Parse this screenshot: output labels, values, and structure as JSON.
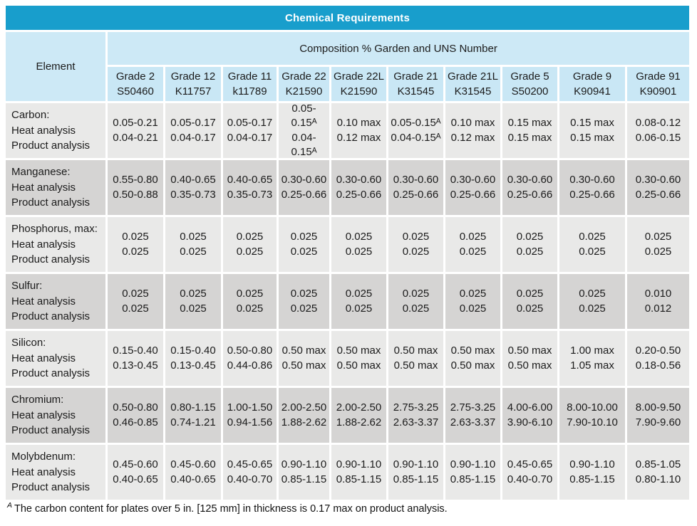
{
  "colors": {
    "title_bg": "#189ECC",
    "title_text": "#FFFFFF",
    "header_bg": "#CDE9F6",
    "row_light": "#E9E9E8",
    "row_dark": "#D5D4D3"
  },
  "table": {
    "title": "Chemical Requirements",
    "element_header": "Element",
    "composition_header": "Composition % Garden and UNS Number",
    "columns": [
      {
        "grade": "Grade 2",
        "uns": "S50460"
      },
      {
        "grade": "Grade 12",
        "uns": "K11757"
      },
      {
        "grade": "Grade 11",
        "uns": "k11789"
      },
      {
        "grade": "Grade 22",
        "uns": "K21590"
      },
      {
        "grade": "Grade 22L",
        "uns": "K21590"
      },
      {
        "grade": "Grade 21",
        "uns": "K31545"
      },
      {
        "grade": "Grade 21L",
        "uns": "K31545"
      },
      {
        "grade": "Grade 5",
        "uns": "S50200"
      },
      {
        "grade": "Grade 9",
        "uns": "K90941"
      },
      {
        "grade": "Grade 91",
        "uns": "K90901"
      }
    ],
    "rows": [
      {
        "element": "Carbon:\nHeat analysis\nProduct analysis",
        "values": [
          "0.05-0.21\n0.04-0.21",
          "0.05-0.17\n0.04-0.17",
          "0.05-0.17\n0.04-0.17",
          "0.05-\n0.15ᴬ\n0.04-\n0.15ᴬ",
          "0.10 max\n0.12 max",
          "0.05-0.15ᴬ\n0.04-0.15ᴬ",
          "0.10 max\n0.12 max",
          "0.15 max\n0.15 max",
          "0.15 max\n0.15 max",
          "0.08-0.12\n0.06-0.15"
        ]
      },
      {
        "element": "Manganese:\nHeat analysis\nProduct analysis",
        "values": [
          "0.55-0.80\n0.50-0.88",
          "0.40-0.65\n0.35-0.73",
          "0.40-0.65\n0.35-0.73",
          "0.30-0.60\n0.25-0.66",
          "0.30-0.60\n0.25-0.66",
          "0.30-0.60\n0.25-0.66",
          "0.30-0.60\n0.25-0.66",
          "0.30-0.60\n0.25-0.66",
          "0.30-0.60\n0.25-0.66",
          "0.30-0.60\n0.25-0.66"
        ]
      },
      {
        "element": "Phosphorus, max:\nHeat analysis\nProduct analysis",
        "values": [
          "0.025\n0.025",
          "0.025\n0.025",
          "0.025\n0.025",
          "0.025\n0.025",
          "0.025\n0.025",
          "0.025\n0.025",
          "0.025\n0.025",
          "0.025\n0.025",
          "0.025\n0.025",
          "0.025\n0.025"
        ]
      },
      {
        "element": "Sulfur:\nHeat analysis\nProduct analysis",
        "values": [
          "0.025\n0.025",
          "0.025\n0.025",
          "0.025\n0.025",
          "0.025\n0.025",
          "0.025\n0.025",
          "0.025\n0.025",
          "0.025\n0.025",
          "0.025\n0.025",
          "0.025\n0.025",
          "0.010\n0.012"
        ]
      },
      {
        "element": "Silicon:\nHeat analysis\nProduct analysis",
        "values": [
          "0.15-0.40\n0.13-0.45",
          "0.15-0.40\n0.13-0.45",
          "0.50-0.80\n0.44-0.86",
          "0.50 max\n0.50 max",
          "0.50 max\n0.50 max",
          "0.50 max\n0.50 max",
          "0.50 max\n0.50 max",
          "0.50 max\n0.50 max",
          "1.00 max\n1.05 max",
          "0.20-0.50\n0.18-0.56"
        ]
      },
      {
        "element": "Chromium:\nHeat analysis\nProduct analysis",
        "values": [
          "0.50-0.80\n0.46-0.85",
          "0.80-1.15\n0.74-1.21",
          "1.00-1.50\n0.94-1.56",
          "2.00-2.50\n1.88-2.62",
          "2.00-2.50\n1.88-2.62",
          "2.75-3.25\n2.63-3.37",
          "2.75-3.25\n2.63-3.37",
          "4.00-6.00\n3.90-6.10",
          "8.00-10.00\n7.90-10.10",
          "8.00-9.50\n7.90-9.60"
        ]
      },
      {
        "element": "Molybdenum:\nHeat analysis\nProduct analysis",
        "values": [
          "0.45-0.60\n0.40-0.65",
          "0.45-0.60\n0.40-0.65",
          "0.45-0.65\n0.40-0.70",
          "0.90-1.10\n0.85-1.15",
          "0.90-1.10\n0.85-1.15",
          "0.90-1.10\n0.85-1.15",
          "0.90-1.10\n0.85-1.15",
          "0.45-0.65\n0.40-0.70",
          "0.90-1.10\n0.85-1.15",
          "0.85-1.05\n0.80-1.10"
        ]
      }
    ],
    "footnote": {
      "sup": "A",
      "text": "The carbon content for plates over 5 in. [125 mm] in thickness is 0.17 max on product analysis."
    }
  }
}
